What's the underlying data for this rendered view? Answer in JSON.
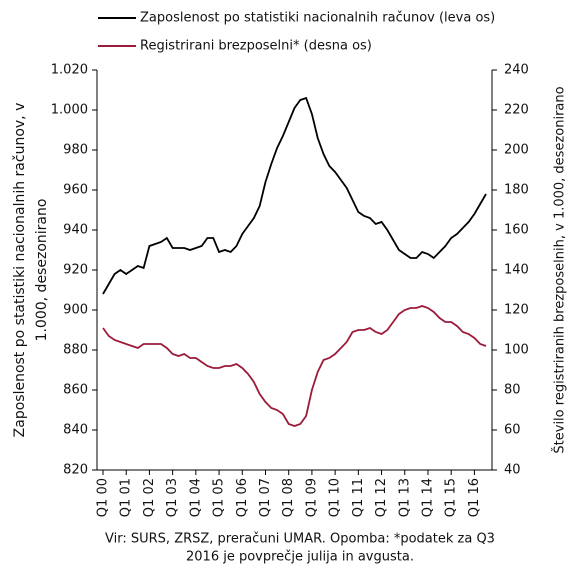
{
  "chart_data": {
    "type": "line",
    "legend": "top",
    "ylabel": [
      "Zaposlenost po statistiki nacionalnih računov,  v",
      "1.000, desezonirano"
    ],
    "y2label": "Število registriranih brezposelnih, v 1.000, desezonirano",
    "note": [
      "Vir: SURS, ZRSZ, preračuni UMAR. Opomba: *podatek za Q3",
      "2016 je povprečje julija in avgusta."
    ],
    "categories": [
      "Q1 00",
      null,
      null,
      null,
      "Q1 01",
      null,
      null,
      null,
      "Q1 02",
      null,
      null,
      null,
      "Q1 03",
      null,
      null,
      null,
      "Q1 04",
      null,
      null,
      null,
      "Q1 05",
      null,
      null,
      null,
      "Q1 06",
      null,
      null,
      null,
      "Q1 07",
      null,
      null,
      null,
      "Q1 08",
      null,
      null,
      null,
      "Q1 09",
      null,
      null,
      null,
      "Q1 10",
      null,
      null,
      null,
      "Q1 11",
      null,
      null,
      null,
      "Q1 12",
      null,
      null,
      null,
      "Q1 13",
      null,
      null,
      null,
      "Q1 14",
      null,
      null,
      null,
      "Q1 15",
      null,
      null,
      null,
      "Q1 16",
      null,
      null
    ],
    "ylim": [
      820,
      1020
    ],
    "yticks": [
      820,
      840,
      860,
      880,
      900,
      920,
      940,
      960,
      980,
      {
        "value": 1000,
        "label": "1.000"
      },
      {
        "value": 1020,
        "label": "1.020"
      }
    ],
    "y2lim": [
      40,
      240
    ],
    "y2ticks": [
      40,
      60,
      80,
      100,
      120,
      140,
      160,
      180,
      200,
      220,
      240
    ],
    "series": [
      {
        "name": "Zaposlenost po statistiki nacionalnih računov (leva os)",
        "color": "#000000",
        "values": [
          908,
          913,
          918,
          920,
          918,
          920,
          922,
          921,
          932,
          933,
          934,
          936,
          931,
          931,
          931,
          930,
          931,
          932,
          936,
          936,
          929,
          930,
          929,
          932,
          938,
          942,
          946,
          952,
          964,
          973,
          981,
          987,
          994,
          1001,
          1005,
          1006,
          998,
          986,
          978,
          972,
          969,
          965,
          961,
          955,
          949,
          947,
          946,
          943,
          944,
          940,
          935,
          930,
          928,
          926,
          926,
          929,
          928,
          926,
          929,
          932,
          936,
          938,
          941,
          944,
          948,
          953,
          958
        ]
      },
      {
        "name": "Registrirani brezposelni* (desna os)",
        "color": "#9b1b3a",
        "axis": "y2",
        "values": [
          111,
          107,
          105,
          104,
          103,
          102,
          101,
          103,
          103,
          103,
          103,
          101,
          98,
          97,
          98,
          96,
          96,
          94,
          92,
          91,
          91,
          92,
          92,
          93,
          91,
          88,
          84,
          78,
          74,
          71,
          70,
          68,
          63,
          62,
          63,
          67,
          80,
          89,
          95,
          96,
          98,
          101,
          104,
          109,
          110,
          110,
          111,
          109,
          108,
          110,
          114,
          118,
          120,
          121,
          121,
          122,
          121,
          119,
          116,
          114,
          114,
          112,
          109,
          108,
          106,
          103,
          102
        ]
      }
    ]
  }
}
